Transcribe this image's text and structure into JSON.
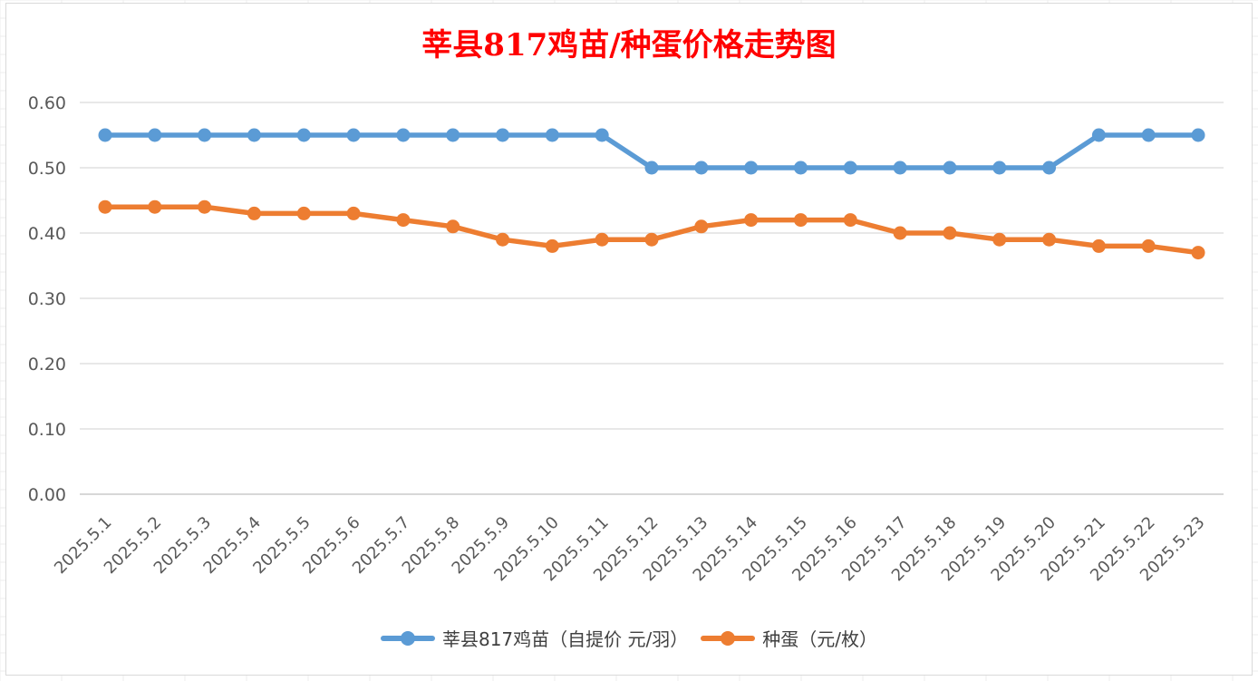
{
  "chart_data": {
    "type": "line",
    "title": "莘县817鸡苗/种蛋价格走势图",
    "categories": [
      "2025.5.1",
      "2025.5.2",
      "2025.5.3",
      "2025.5.4",
      "2025.5.5",
      "2025.5.6",
      "2025.5.7",
      "2025.5.8",
      "2025.5.9",
      "2025.5.10",
      "2025.5.11",
      "2025.5.12",
      "2025.5.13",
      "2025.5.14",
      "2025.5.15",
      "2025.5.16",
      "2025.5.17",
      "2025.5.18",
      "2025.5.19",
      "2025.5.20",
      "2025.5.21",
      "2025.5.22",
      "2025.5.23"
    ],
    "series": [
      {
        "name": "莘县817鸡苗（自提价 元/羽）",
        "color": "#5b9bd5",
        "values": [
          0.55,
          0.55,
          0.55,
          0.55,
          0.55,
          0.55,
          0.55,
          0.55,
          0.55,
          0.55,
          0.55,
          0.5,
          0.5,
          0.5,
          0.5,
          0.5,
          0.5,
          0.5,
          0.5,
          0.5,
          0.55,
          0.55,
          0.55
        ]
      },
      {
        "name": "种蛋（元/枚）",
        "color": "#ed7d31",
        "values": [
          0.44,
          0.44,
          0.44,
          0.43,
          0.43,
          0.43,
          0.42,
          0.41,
          0.39,
          0.38,
          0.39,
          0.39,
          0.41,
          0.42,
          0.42,
          0.42,
          0.4,
          0.4,
          0.39,
          0.39,
          0.38,
          0.38,
          0.37
        ]
      }
    ],
    "yticks": [
      "0.00",
      "0.10",
      "0.20",
      "0.30",
      "0.40",
      "0.50",
      "0.60"
    ],
    "ylim": [
      0,
      0.6
    ],
    "xlabel": "",
    "ylabel": "",
    "grid": true,
    "legend_position": "bottom"
  }
}
